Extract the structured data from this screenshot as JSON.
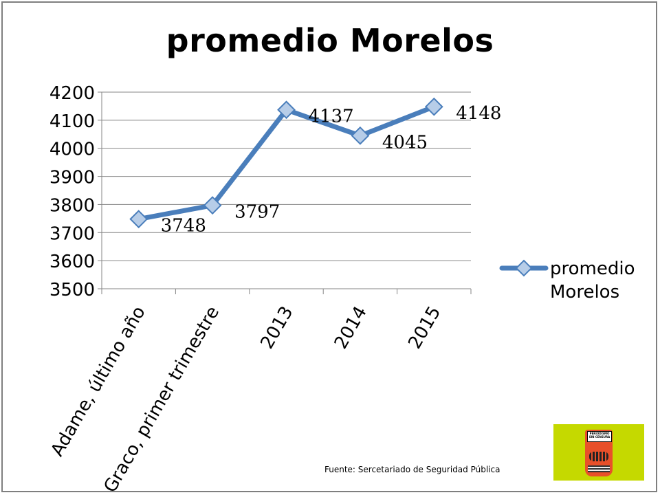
{
  "chart_data": {
    "type": "line",
    "title": "promedio Morelos",
    "categories": [
      "Adame, último año",
      "Graco, primer trimestre",
      "2013",
      "2014",
      "2015"
    ],
    "series": [
      {
        "name": "promedio Morelos",
        "values": [
          3748,
          3797,
          4137,
          4045,
          4148
        ]
      }
    ],
    "data_labels": [
      "3748",
      "3797",
      "4137",
      "4045",
      "4148"
    ],
    "yticks": [
      3500,
      3600,
      3700,
      3800,
      3900,
      4000,
      4100,
      4200
    ],
    "ylim": [
      3500,
      4200
    ],
    "grid": true,
    "legend": "right",
    "colors": {
      "series": "#4a7ebb",
      "marker_fill": "#b7cde8",
      "grid": "#868686"
    }
  },
  "footer": {
    "source": "Fuente: Sercetariado de Seguridad Pública",
    "logo_text": "PERIODISMO SIN CENSURA"
  }
}
